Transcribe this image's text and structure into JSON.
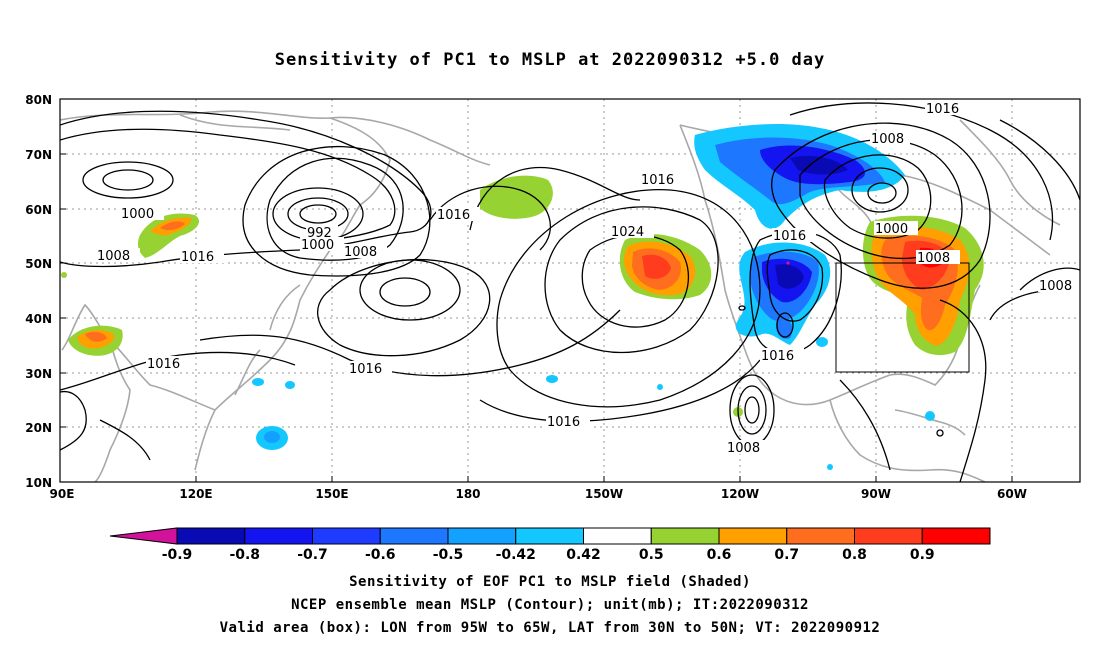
{
  "title": "Sensitivity of PC1 to MSLP at 2022090312 +5.0 day",
  "lat_labels": [
    "80N",
    "70N",
    "60N",
    "50N",
    "40N",
    "30N",
    "20N",
    "10N"
  ],
  "lon_labels": [
    "90E",
    "120E",
    "150E",
    "180",
    "150W",
    "120W",
    "90W",
    "60W"
  ],
  "contour_labels": [
    "1016",
    "1008",
    "1000",
    "992",
    "1000",
    "1008",
    "1008",
    "1016",
    "1016",
    "1024",
    "1016",
    "1016",
    "1016",
    "1016",
    "1000",
    "1008",
    "1008",
    "1016",
    "1016",
    "1008"
  ],
  "colorbar": {
    "labels": [
      "-0.9",
      "-0.8",
      "-0.7",
      "-0.6",
      "-0.5",
      "-0.42",
      "0.42",
      "0.5",
      "0.6",
      "0.7",
      "0.8",
      "0.9"
    ],
    "colors": [
      "#0a0ab4",
      "#1414f0",
      "#1e3cff",
      "#1e78ff",
      "#14a0ff",
      "#14c8ff",
      "#ffffff",
      "#96d232",
      "#ffa000",
      "#ff6e1e",
      "#ff3c1e",
      "#ff0000"
    ],
    "end_low": "#d2129b",
    "end_high": "#f5a5c8"
  },
  "footer": {
    "line1": "Sensitivity of EOF PC1 to MSLP field (Shaded)",
    "line2": "NCEP ensemble mean MSLP (Contour); unit(mb); IT:2022090312",
    "line3": "Valid area (box): LON from 95W to 65W, LAT from 30N to 50N; VT: 2022090912"
  }
}
